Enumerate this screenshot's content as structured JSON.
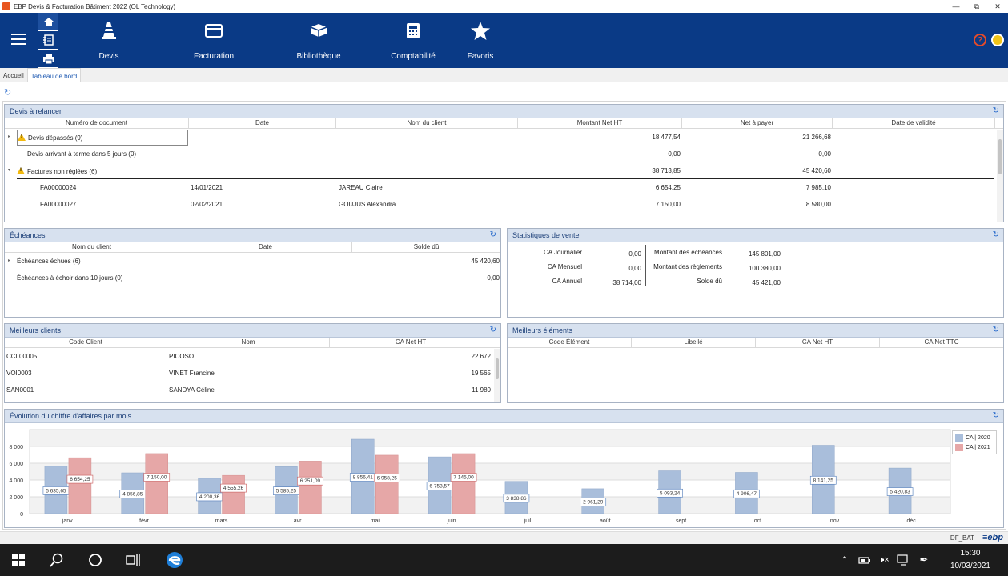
{
  "window": {
    "title": "EBP Devis & Facturation Bâtiment 2022 (OL Technology)",
    "min": "—",
    "max": "⧉",
    "close": "✕"
  },
  "ribbon": {
    "modules": [
      {
        "label": "Devis",
        "icon": "cone-icon"
      },
      {
        "label": "Facturation",
        "icon": "card-icon"
      },
      {
        "label": "Bibliothèque",
        "icon": "box-icon"
      },
      {
        "label": "Comptabilité",
        "icon": "calculator-icon"
      },
      {
        "label": "Favoris",
        "icon": "star-icon"
      }
    ],
    "help": "?"
  },
  "tabs": [
    "Accueil",
    "Tableau de bord"
  ],
  "devis": {
    "title": "Devis à relancer",
    "headers": [
      "Numéro de document",
      "Date",
      "Nom du client",
      "Montant Net HT",
      "Net à payer",
      "Date de validité"
    ],
    "groups": [
      {
        "label": "Devis dépassés (9)",
        "ht": "18 477,54",
        "net": "21 266,68"
      },
      {
        "label": "Devis arrivant à terme dans 5 jours (0)",
        "ht": "0,00",
        "net": "0,00"
      },
      {
        "label": "Factures non réglées (6)",
        "ht": "38 713,85",
        "net": "45 420,60"
      }
    ],
    "rows": [
      {
        "doc": "FA00000024",
        "date": "14/01/2021",
        "client": "JAREAU Claire",
        "ht": "6 654,25",
        "net": "7 985,10"
      },
      {
        "doc": "FA00000027",
        "date": "02/02/2021",
        "client": "GOUJUS Alexandra",
        "ht": "7 150,00",
        "net": "8 580,00"
      }
    ]
  },
  "echeances": {
    "title": "Échéances",
    "headers": [
      "Nom du client",
      "Date",
      "Solde dû"
    ],
    "rows": [
      {
        "label": "Échéances échues (6)",
        "solde": "45 420,60"
      },
      {
        "label": "Échéances à échoir dans 10 jours (0)",
        "solde": "0,00"
      }
    ]
  },
  "stats": {
    "title": "Statistiques de vente",
    "left": [
      {
        "label": "CA Journalier",
        "value": "0,00"
      },
      {
        "label": "CA Mensuel",
        "value": "0,00"
      },
      {
        "label": "CA Annuel",
        "value": "38 714,00"
      }
    ],
    "right": [
      {
        "label": "Montant des échéances",
        "value": "145 801,00"
      },
      {
        "label": "Montant des règlements",
        "value": "100 380,00"
      },
      {
        "label": "Solde dû",
        "value": "45 421,00"
      }
    ]
  },
  "clients": {
    "title": "Meilleurs clients",
    "headers": [
      "Code Client",
      "Nom",
      "CA Net HT"
    ],
    "rows": [
      {
        "code": "CCL00005",
        "nom": "PICOSO",
        "ca": "22 672"
      },
      {
        "code": "VOI0003",
        "nom": "VINET Francine",
        "ca": "19 565"
      },
      {
        "code": "SAN0001",
        "nom": "SANDYA Céline",
        "ca": "11 980"
      }
    ]
  },
  "elements": {
    "title": "Meilleurs éléments",
    "headers": [
      "Code Élément",
      "Libellé",
      "CA Net HT",
      "CA Net TTC"
    ]
  },
  "chart_title": "Évolution du chiffre d'affaires par mois",
  "chart_data": {
    "type": "bar",
    "categories": [
      "janv.",
      "févr.",
      "mars",
      "avr.",
      "mai",
      "juin",
      "juil.",
      "août",
      "sept.",
      "oct.",
      "nov.",
      "déc."
    ],
    "series": [
      {
        "name": "CA | 2020",
        "color": "#a9bedb",
        "values": [
          5635.65,
          4856.85,
          4200.36,
          5585.25,
          8856.41,
          6753.57,
          3838.86,
          2961.29,
          5093.24,
          4906.47,
          8141.25,
          5420.83
        ],
        "labels": [
          "5 635,65",
          "4 856,85",
          "4 200,36",
          "5 585,25",
          "8 856,41",
          "6 753,57",
          "3 838,86",
          "2 961,29",
          "5 093,24",
          "4 906,47",
          "8 141,25",
          "5 420,83"
        ]
      },
      {
        "name": "CA | 2021",
        "color": "#e6a7a7",
        "values": [
          6654.25,
          7150.0,
          4555.26,
          6251.09,
          6958.25,
          7145.0,
          null,
          null,
          null,
          null,
          null,
          null
        ],
        "labels": [
          "6 654,25",
          "7 150,00",
          "4 555,26",
          "6 251,09",
          "6 958,25",
          "7 145,00",
          "",
          "",
          "",
          "",
          "",
          ""
        ]
      }
    ],
    "yticks": [
      "0",
      "2 000",
      "4 000",
      "6 000",
      "8 000"
    ],
    "ylim": [
      0,
      10000
    ],
    "grid": true,
    "legend": "top-right"
  },
  "status": {
    "db": "DF_BAT",
    "logo": "≡ebp"
  },
  "taskbar": {
    "time": "15:30",
    "date": "10/03/2021"
  }
}
